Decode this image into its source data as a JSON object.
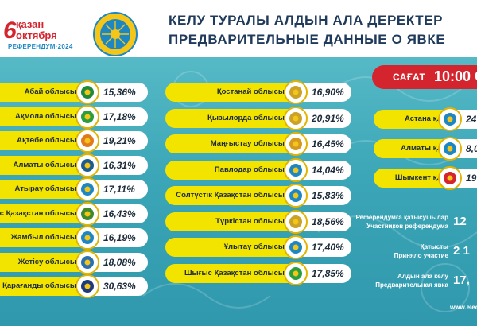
{
  "header": {
    "date_number": "6",
    "date_kz": "қазан",
    "date_ru": "октября",
    "referendum_label": "РЕФЕРЕНДУМ·2024",
    "title_kz": "КЕЛУ ТУРАЛЫ АЛДЫН АЛА ДЕРЕКТЕР",
    "title_ru": "ПРЕДВАРИТЕЛЬНЫЕ ДАННЫЕ О ЯВКЕ"
  },
  "time_badge": {
    "label": "САҒАТ",
    "value": "10:00 С"
  },
  "left_regions": [
    {
      "name": "Абай облысы",
      "value": "15,36%",
      "logo_color": "#1f8a3a"
    },
    {
      "name": "Ақмола облысы",
      "value": "17,18%",
      "logo_color": "#2a9d3d"
    },
    {
      "name": "Ақтөбе облысы",
      "value": "19,21%",
      "logo_color": "#e07a1f"
    },
    {
      "name": "Алматы облысы",
      "value": "16,31%",
      "logo_color": "#1d5c8c"
    },
    {
      "name": "Атырау облысы",
      "value": "17,11%",
      "logo_color": "#1d87c4"
    },
    {
      "name": "ыс Қазақстан облысы",
      "value": "16,43%",
      "logo_color": "#3f8a2a"
    },
    {
      "name": "Жамбыл облысы",
      "value": "16,19%",
      "logo_color": "#1d87c4"
    },
    {
      "name": "Жетісу облысы",
      "value": "18,08%",
      "logo_color": "#2a6fb0"
    },
    {
      "name": "Қарағанды облысы",
      "value": "30,63%",
      "logo_color": "#1f3a7a"
    }
  ],
  "mid_regions": [
    {
      "name": "Қостанай облысы",
      "value": "16,90%",
      "logo_color": "#c9a227"
    },
    {
      "name": "Қызылорда облысы",
      "value": "20,91%",
      "logo_color": "#c9a227"
    },
    {
      "name": "Маңғыстау облысы",
      "value": "16,45%",
      "logo_color": "#d49a1f"
    },
    {
      "name": "Павлодар облысы",
      "value": "14,04%",
      "logo_color": "#1d87c4"
    },
    {
      "name": "Солтүстік Қазақстан облысы",
      "value": "15,83%",
      "logo_color": "#1d87c4"
    },
    {
      "name": "Түркістан облысы",
      "value": "18,56%",
      "logo_color": "#c9a227"
    },
    {
      "name": "Ұлытау облысы",
      "value": "17,40%",
      "logo_color": "#1d87c4"
    },
    {
      "name": "Шығыс Қазақстан облысы",
      "value": "17,85%",
      "logo_color": "#2a9d3d"
    }
  ],
  "cities": [
    {
      "name": "Астана қ.",
      "value": "24",
      "logo_color": "#1d87c4"
    },
    {
      "name": "Алматы қ.",
      "value": "8,0",
      "logo_color": "#1d87c4"
    },
    {
      "name": "Шымкент қ.",
      "value": "19",
      "logo_color": "#d4252f"
    }
  ],
  "stats": [
    {
      "label_kz": "Референдумға қатысушылар",
      "label_ru": "Участников референдума",
      "value": "12"
    },
    {
      "label_kz": "Қатысты",
      "label_ru": "Приняло участие",
      "value": "2 1"
    },
    {
      "label_kz": "Алдын ала келу",
      "label_ru": "Предварительная явка",
      "value": "17,"
    }
  ],
  "website": "www.elect",
  "colors": {
    "accent_red": "#d4252f",
    "name_yellow": "#f3e400",
    "panel_teal": "#3ba6b7",
    "title_navy": "#1f3a5a"
  }
}
